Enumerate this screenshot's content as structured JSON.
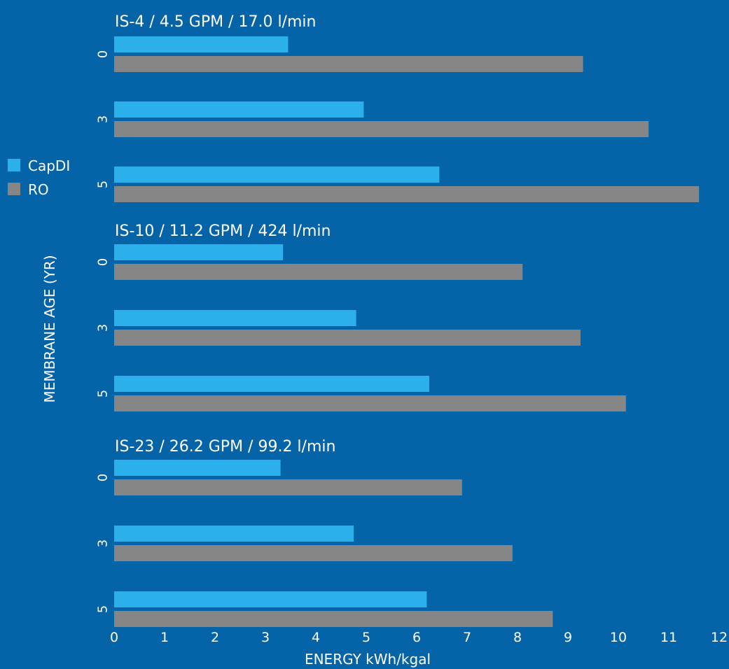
{
  "chart_data": {
    "type": "bar",
    "orientation": "horizontal",
    "xlabel": "ENERGY kWh/kgal",
    "ylabel": "MEMBRANE AGE (YR)",
    "xlim": [
      0,
      12
    ],
    "xticks": [
      "0",
      "1",
      "2",
      "3",
      "4",
      "5",
      "6",
      "7",
      "8",
      "9",
      "10",
      "11",
      "12"
    ],
    "grid": false,
    "legend_position": "left",
    "legend": [
      {
        "name": "CapDI",
        "color": "#2bb0ec"
      },
      {
        "name": "RO",
        "color": "#868686"
      }
    ],
    "groups": [
      {
        "title": "IS-4 / 4.5 GPM / 17.0 l/min",
        "categories": [
          "0",
          "3",
          "5"
        ],
        "series": [
          {
            "name": "CapDI",
            "values": [
              3.45,
              4.95,
              6.45
            ]
          },
          {
            "name": "RO",
            "values": [
              9.3,
              10.6,
              11.6
            ]
          }
        ]
      },
      {
        "title": "IS-10 / 11.2 GPM / 424 l/min",
        "categories": [
          "0",
          "3",
          "5"
        ],
        "series": [
          {
            "name": "CapDI",
            "values": [
              3.35,
              4.8,
              6.25
            ]
          },
          {
            "name": "RO",
            "values": [
              8.1,
              9.25,
              10.15
            ]
          }
        ]
      },
      {
        "title": "IS-23 / 26.2 GPM / 99.2 l/min",
        "categories": [
          "0",
          "3",
          "5"
        ],
        "series": [
          {
            "name": "CapDI",
            "values": [
              3.3,
              4.75,
              6.2
            ]
          },
          {
            "name": "RO",
            "values": [
              6.9,
              7.9,
              8.7
            ]
          }
        ]
      }
    ]
  }
}
